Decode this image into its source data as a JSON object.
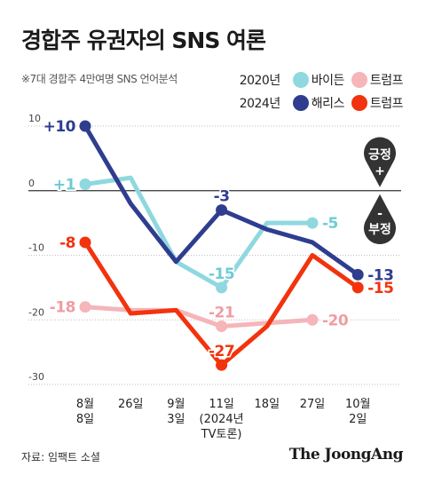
{
  "header": {
    "title": "경합주 유권자의 SNS 여론",
    "note": "※7대 경합주 4만여명 SNS 언어분석"
  },
  "legend": {
    "rows": [
      {
        "year": "2020년",
        "entries": [
          {
            "name": "바이든",
            "color": "#8fd8df"
          },
          {
            "name": "트럼프",
            "color": "#f5b5b9"
          }
        ]
      },
      {
        "year": "2024년",
        "entries": [
          {
            "name": "해리스",
            "color": "#2f3d8f"
          },
          {
            "name": "트럼프",
            "color": "#f2330d"
          }
        ]
      }
    ]
  },
  "badges": {
    "positive": {
      "label": "긍정",
      "symbol": "+"
    },
    "negative": {
      "label": "부정",
      "symbol": "-"
    }
  },
  "footer": {
    "source": "자료: 임팩트 소셜",
    "logo": "The JoongAng"
  },
  "chart_data": {
    "type": "line",
    "categories": [
      [
        "8월",
        "8일"
      ],
      [
        "26일"
      ],
      [
        "9월",
        "3일"
      ],
      [
        "11일",
        "(2024년",
        "TV토론)"
      ],
      [
        "18일"
      ],
      [
        "27일"
      ],
      [
        "10월",
        "2일"
      ]
    ],
    "ylim": [
      -30,
      10
    ],
    "yticks": [
      10,
      0,
      -10,
      -20,
      -30
    ],
    "series": [
      {
        "name": "바이든",
        "year": "2020년",
        "color": "#8fd8df",
        "values": [
          1,
          2,
          -11,
          -15,
          -5,
          -5,
          null
        ],
        "labels": [
          {
            "i": 0,
            "text": "+1",
            "pos": "left"
          },
          {
            "i": 3,
            "text": "-15",
            "pos": "above"
          },
          {
            "i": 5,
            "text": "-5",
            "pos": "right"
          }
        ]
      },
      {
        "name": "트럼프",
        "year": "2020년",
        "color": "#f5b5b9",
        "values": [
          -18,
          -18.5,
          -18.5,
          -21,
          -20.5,
          -20,
          null
        ],
        "labels": [
          {
            "i": 0,
            "text": "-18",
            "pos": "left"
          },
          {
            "i": 3,
            "text": "-21",
            "pos": "above"
          },
          {
            "i": 5,
            "text": "-20",
            "pos": "right"
          }
        ]
      },
      {
        "name": "트럼프",
        "year": "2024년",
        "color": "#f2330d",
        "values": [
          -8,
          -19,
          -18.5,
          -27,
          -21,
          -10,
          -15
        ],
        "labels": [
          {
            "i": 0,
            "text": "-8",
            "pos": "left"
          },
          {
            "i": 3,
            "text": "-27",
            "pos": "above"
          },
          {
            "i": 6,
            "text": "-15",
            "pos": "right"
          }
        ]
      },
      {
        "name": "해리스",
        "year": "2024년",
        "color": "#2f3d8f",
        "values": [
          10,
          -2,
          -11,
          -3,
          -6,
          -8,
          -13
        ],
        "labels": [
          {
            "i": 0,
            "text": "+10",
            "pos": "left"
          },
          {
            "i": 3,
            "text": "-3",
            "pos": "above"
          },
          {
            "i": 6,
            "text": "-13",
            "pos": "right"
          }
        ]
      }
    ]
  }
}
